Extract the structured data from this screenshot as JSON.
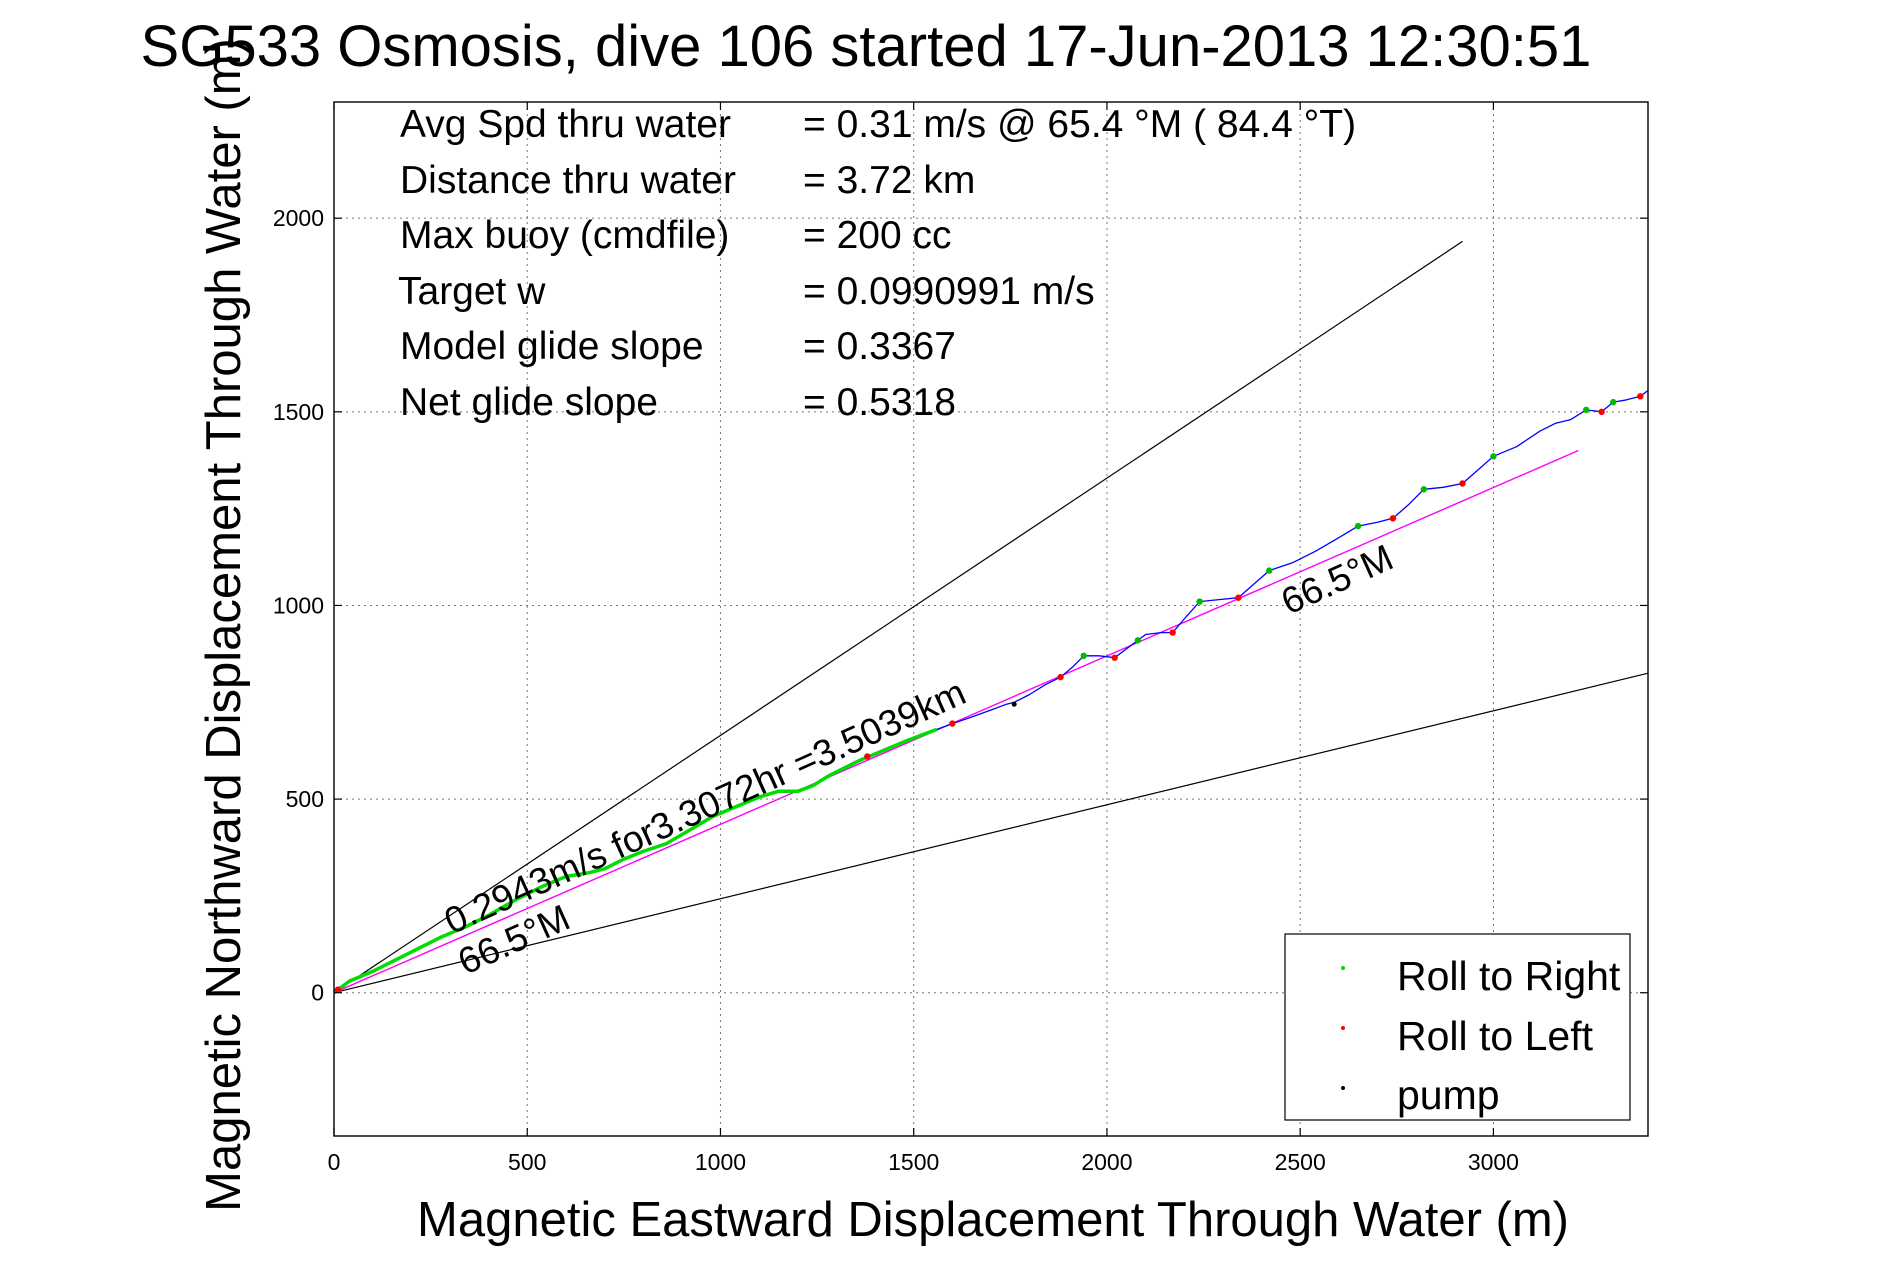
{
  "chart_data": {
    "type": "line",
    "title": "SG533 Osmosis, dive 106 started 17-Jun-2013 12:30:51",
    "xlabel": "Magnetic Eastward Displacement Through Water (m)",
    "ylabel": "Magnetic Northward Displacement Through Water (m)",
    "xlim": [
      0,
      3400
    ],
    "ylim": [
      -370,
      2300
    ],
    "xticks": [
      0,
      500,
      1000,
      1500,
      2000,
      2500,
      3000
    ],
    "yticks": [
      0,
      500,
      1000,
      1500,
      2000
    ],
    "grid": true,
    "info_lines": [
      {
        "label": "Avg Spd thru water",
        "value": "=  0.31 m/s @  65.4 °M ( 84.4 °T)"
      },
      {
        "label": "Distance thru water",
        "value": "=  3.72 km"
      },
      {
        "label": "Max buoy (cmdfile)",
        "value": "= 200 cc"
      },
      {
        "label": "Target w",
        "value": "= 0.0990991 m/s"
      },
      {
        "label": "Model glide slope",
        "value": "= 0.3367"
      },
      {
        "label": "Net glide slope",
        "value": "= 0.5318"
      }
    ],
    "guide_lines": [
      {
        "x": [
          0,
          2920
        ],
        "y": [
          0,
          1940
        ],
        "color": "#000000"
      },
      {
        "x": [
          0,
          3400
        ],
        "y": [
          0,
          825
        ],
        "color": "#000000"
      }
    ],
    "heading_line": {
      "x": [
        0,
        3220
      ],
      "y": [
        0,
        1400
      ],
      "color": "#ff00ff"
    },
    "annotations": [
      {
        "text": "0.2943m/s for3.3072hr =3.5039km",
        "x": 305,
        "y": 150,
        "angle": -24.3
      },
      {
        "text": "66.5°M",
        "x": 340,
        "y": 45,
        "angle": -24.3
      },
      {
        "text": "66.5°M",
        "x": 2470,
        "y": 975,
        "angle": -24.3
      }
    ],
    "series": [
      {
        "name": "Roll to Right",
        "color": "#00dd00",
        "x": [
          0,
          40,
          100,
          160,
          220,
          280,
          340,
          400,
          470,
          540,
          600,
          660,
          700,
          750,
          800,
          860,
          920,
          980,
          1040,
          1100,
          1150,
          1200,
          1240,
          1280,
          1320,
          1360,
          1420,
          1480,
          1520,
          1560
        ],
        "y": [
          0,
          30,
          55,
          85,
          115,
          145,
          170,
          200,
          240,
          275,
          300,
          310,
          320,
          345,
          365,
          385,
          420,
          455,
          480,
          505,
          520,
          520,
          535,
          560,
          580,
          600,
          625,
          650,
          665,
          680
        ]
      },
      {
        "name": "Roll to Left",
        "color": "#ff0000",
        "x": [
          10,
          1380,
          1600,
          1880,
          2020,
          2170,
          2340,
          2740,
          2920,
          3280,
          3380
        ],
        "y": [
          8,
          610,
          695,
          815,
          865,
          930,
          1020,
          1225,
          1315,
          1500,
          1540
        ]
      },
      {
        "name": "pump",
        "color": "#000000",
        "x": [
          1760
        ],
        "y": [
          745
        ]
      }
    ],
    "track": {
      "color": "#0000ff",
      "x": [
        1560,
        1600,
        1650,
        1700,
        1740,
        1760,
        1800,
        1840,
        1880,
        1910,
        1940,
        1980,
        2020,
        2060,
        2100,
        2140,
        2170,
        2200,
        2240,
        2290,
        2340,
        2380,
        2420,
        2480,
        2540,
        2600,
        2650,
        2700,
        2740,
        2780,
        2820,
        2870,
        2920,
        2960,
        3000,
        3060,
        3120,
        3160,
        3200,
        3240,
        3280,
        3310,
        3340,
        3380,
        3400
      ],
      "y": [
        680,
        695,
        712,
        730,
        745,
        750,
        770,
        795,
        815,
        840,
        870,
        870,
        865,
        895,
        925,
        930,
        930,
        965,
        1010,
        1015,
        1020,
        1055,
        1090,
        1110,
        1140,
        1175,
        1205,
        1215,
        1225,
        1260,
        1300,
        1305,
        1315,
        1350,
        1385,
        1410,
        1450,
        1470,
        1480,
        1505,
        1500,
        1525,
        1530,
        1540,
        1555
      ]
    },
    "legend": {
      "placement": "bottom-right",
      "entries": [
        "Roll to Right",
        "Roll to Left",
        "pump"
      ]
    }
  }
}
